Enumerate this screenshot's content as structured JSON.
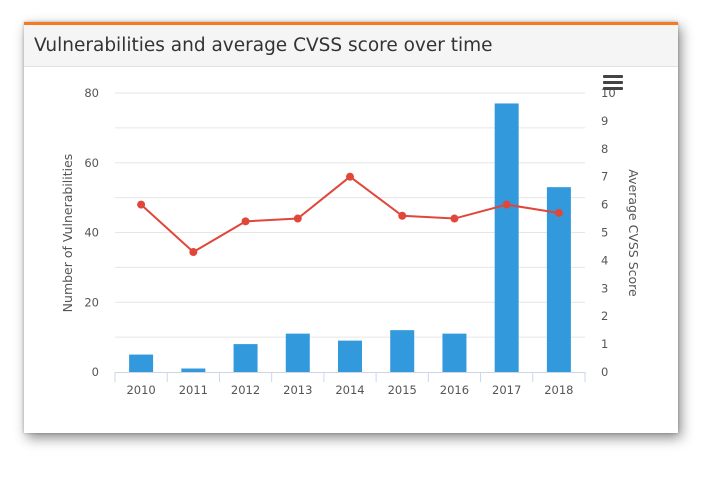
{
  "panel": {
    "title": "Vulnerabilities and average CVSS score over time",
    "menu_icon": "hamburger-menu-icon"
  },
  "colors": {
    "accent": "#f47b20",
    "bar": "#3399dd",
    "line": "#e0473a",
    "axis_text": "#555555",
    "grid": "#e6e6e6"
  },
  "chart_data": {
    "type": "bar",
    "title": "Vulnerabilities and average CVSS score over time",
    "categories": [
      "2010",
      "2011",
      "2012",
      "2013",
      "2014",
      "2015",
      "2016",
      "2017",
      "2018"
    ],
    "xlabel": "",
    "ylabel": "Number of Vulnerabilities",
    "y2label": "Average CVSS Score",
    "ylim": [
      0,
      80
    ],
    "y2lim": [
      0,
      10
    ],
    "yticks": [
      0,
      20,
      40,
      60,
      80
    ],
    "y2ticks": [
      0,
      1,
      2,
      3,
      4,
      5,
      6,
      7,
      8,
      9,
      10
    ],
    "series": [
      {
        "name": "Number of Vulnerabilities",
        "kind": "bar",
        "axis": "left",
        "values": [
          5,
          1,
          8,
          11,
          9,
          12,
          11,
          77,
          53
        ]
      },
      {
        "name": "Average CVSS Score",
        "kind": "line",
        "axis": "right",
        "values": [
          6.0,
          4.3,
          5.4,
          5.5,
          7.0,
          5.6,
          5.5,
          6.0,
          5.7
        ]
      }
    ],
    "grid": true,
    "legend": "none"
  }
}
